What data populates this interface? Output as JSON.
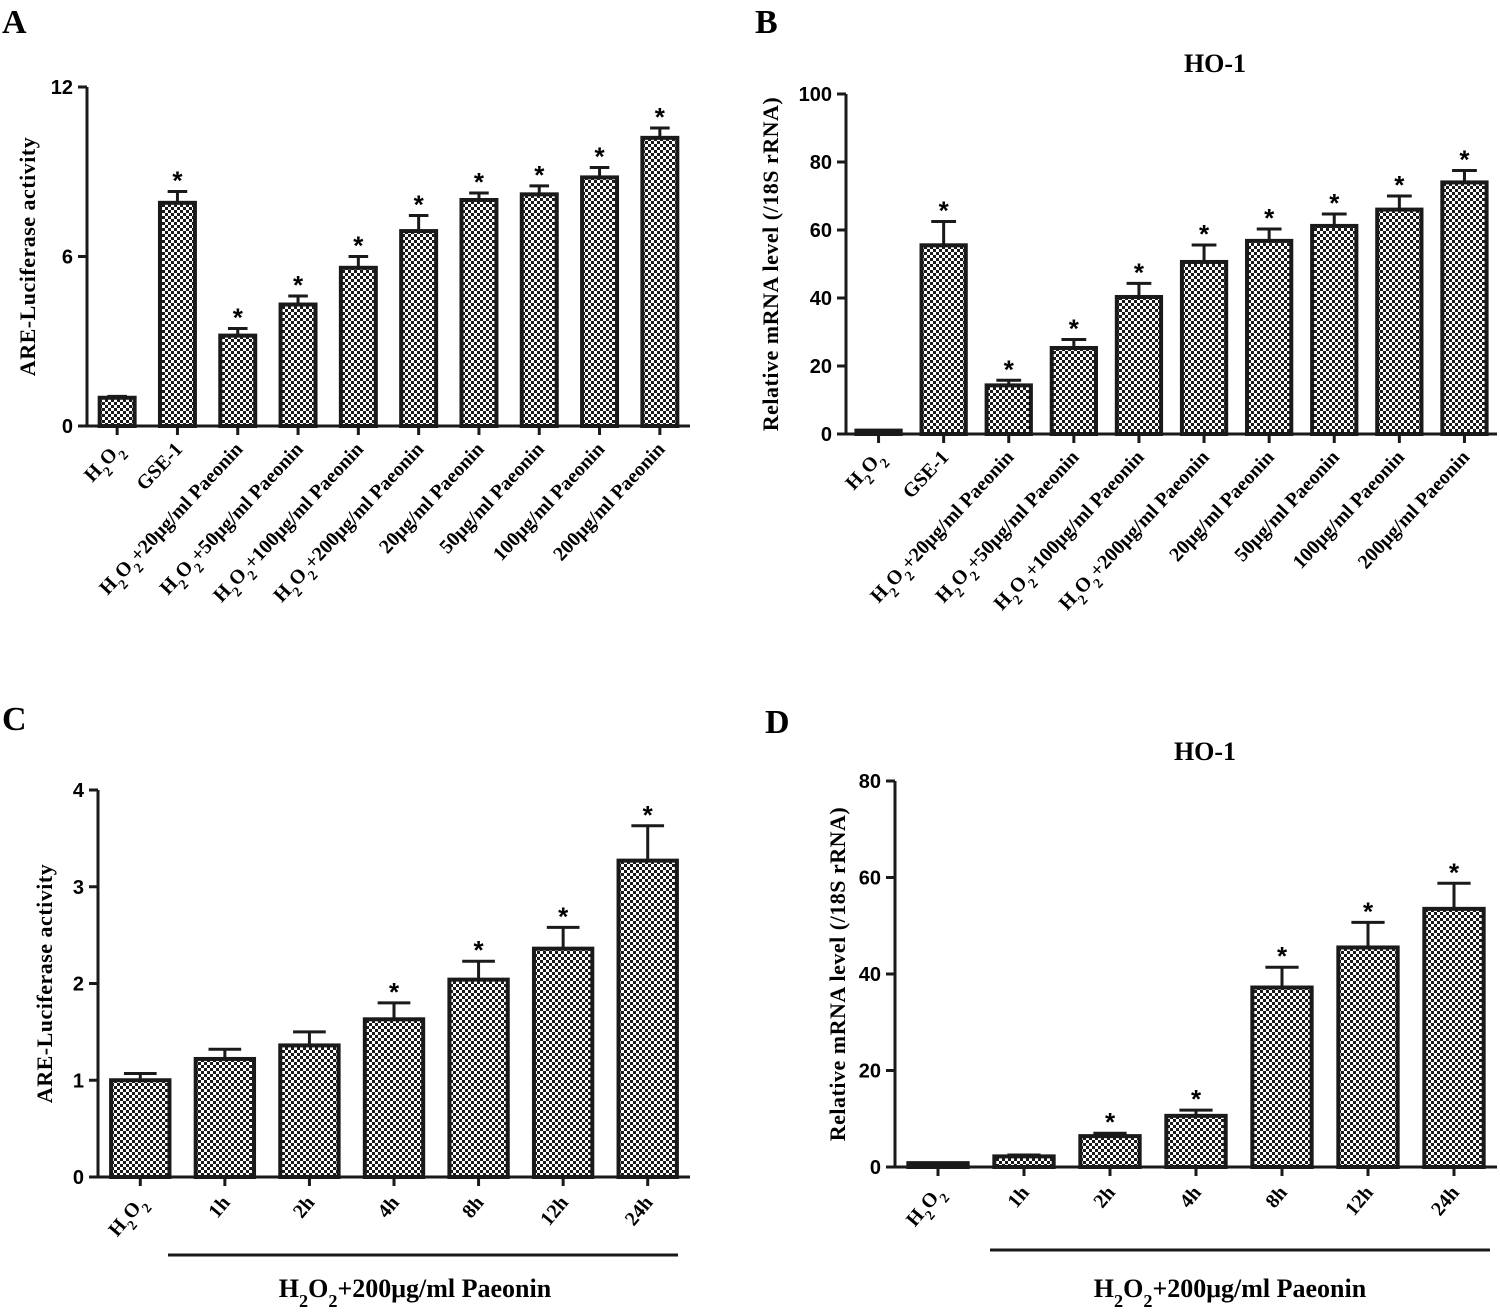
{
  "figure": {
    "subscript2": "2",
    "group_prefix": "H",
    "group_mid": "O",
    "group_suffix": "+200μg/ml Paeonin",
    "colors": {
      "ink": "#1a1a1a",
      "fill_light": "#ffffff"
    }
  },
  "chart_data": [
    {
      "panel": "A",
      "type": "bar",
      "title": "",
      "ylabel": "ARE-Luciferase activity",
      "ylim": [
        0,
        12
      ],
      "yticks": [
        0,
        6,
        12
      ],
      "categories": [
        "H2O2",
        "GSE-1",
        "H2O2+20μg/ml Paeonin",
        "H2O2+50μg/ml Paeonin",
        "H2O2+100μg/ml Paeonin",
        "H2O2+200μg/ml Paeonin",
        "20μg/ml Paeonin",
        "50μg/ml Paeonin",
        "100μg/ml Paeonin",
        "200μg/ml Paeonin"
      ],
      "values": [
        1.0,
        7.9,
        3.2,
        4.3,
        5.6,
        6.9,
        8.0,
        8.2,
        8.8,
        10.2
      ],
      "errors": [
        0.05,
        0.4,
        0.25,
        0.3,
        0.4,
        0.55,
        0.25,
        0.3,
        0.35,
        0.35
      ],
      "significance": [
        "",
        "*",
        "*",
        "*",
        "*",
        "*",
        "*",
        "*",
        "*",
        "*"
      ]
    },
    {
      "panel": "B",
      "type": "bar",
      "title": "HO-1",
      "ylabel": "Relative mRNA level (/18S rRNA)",
      "ylim": [
        0,
        100
      ],
      "yticks": [
        0,
        20,
        40,
        60,
        80,
        100
      ],
      "categories": [
        "H2O2",
        "GSE-1",
        "H2O2+20μg/ml Paeonin",
        "H2O2+50μg/ml Paeonin",
        "H2O2+100μg/ml Paeonin",
        "H2O2+200μg/ml Paeonin",
        "20μg/ml Paeonin",
        "50μg/ml Paeonin",
        "100μg/ml Paeonin",
        "200μg/ml Paeonin"
      ],
      "values": [
        1,
        55.5,
        14.3,
        25.3,
        40.3,
        50.6,
        56.8,
        61.2,
        66,
        74
      ],
      "errors": [
        0.2,
        7,
        1.5,
        2.5,
        4,
        5,
        3.5,
        3.5,
        4,
        3.5
      ],
      "significance": [
        "",
        "*",
        "*",
        "*",
        "*",
        "*",
        "*",
        "*",
        "*",
        "*"
      ]
    },
    {
      "panel": "C",
      "type": "bar",
      "title": "",
      "ylabel": "ARE-Luciferase activity",
      "ylim": [
        0,
        4
      ],
      "yticks": [
        0,
        1,
        2,
        3,
        4
      ],
      "categories": [
        "H2O2",
        "1h",
        "2h",
        "4h",
        "8h",
        "12h",
        "24h"
      ],
      "values": [
        1.0,
        1.22,
        1.36,
        1.63,
        2.04,
        2.36,
        3.27
      ],
      "errors": [
        0.07,
        0.1,
        0.14,
        0.17,
        0.19,
        0.22,
        0.36
      ],
      "significance": [
        "",
        "",
        "",
        "*",
        "*",
        "*",
        "*"
      ],
      "group_label": "H2O2+200μg/ml Paeonin"
    },
    {
      "panel": "D",
      "type": "bar",
      "title": "HO-1",
      "ylabel": "Relative mRNA level (/18S rRNA)",
      "ylim": [
        0,
        80
      ],
      "yticks": [
        0,
        20,
        40,
        60,
        80
      ],
      "categories": [
        "H2O2",
        "1h",
        "2h",
        "4h",
        "8h",
        "12h",
        "24h"
      ],
      "values": [
        0.8,
        2.2,
        6.4,
        10.6,
        37.2,
        45.5,
        53.5
      ],
      "errors": [
        0.1,
        0.3,
        0.6,
        1.2,
        4.2,
        5.2,
        5.3
      ],
      "significance": [
        "",
        "",
        "*",
        "*",
        "*",
        "*",
        "*"
      ],
      "group_label": "H2O2+200μg/ml Paeonin"
    }
  ]
}
